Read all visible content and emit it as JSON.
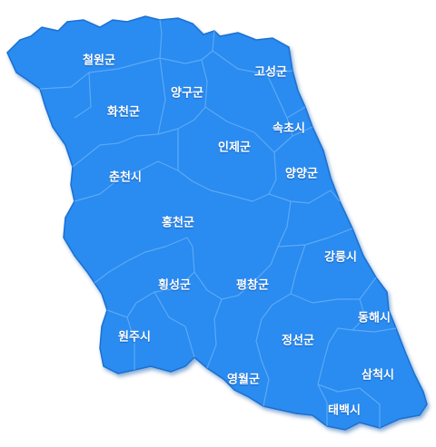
{
  "map": {
    "fill_color": "#2b8bf0",
    "edge_color": "#1a6fd0",
    "border_color": "#5aaaf8",
    "regions": [
      {
        "id": "cheorwon",
        "label": "철원군"
      },
      {
        "id": "hwacheon",
        "label": "화천군"
      },
      {
        "id": "yanggu",
        "label": "양구군"
      },
      {
        "id": "goseong",
        "label": "고성군"
      },
      {
        "id": "sokcho",
        "label": "속초시"
      },
      {
        "id": "inje",
        "label": "인제군"
      },
      {
        "id": "yangyang",
        "label": "양양군"
      },
      {
        "id": "chuncheon",
        "label": "춘천시"
      },
      {
        "id": "hongcheon",
        "label": "홍천군"
      },
      {
        "id": "gangneung",
        "label": "강릉시"
      },
      {
        "id": "hoengseong",
        "label": "횡성군"
      },
      {
        "id": "pyeongchang",
        "label": "평창군"
      },
      {
        "id": "donghae",
        "label": "동해시"
      },
      {
        "id": "wonju",
        "label": "원주시"
      },
      {
        "id": "jeongseon",
        "label": "정선군"
      },
      {
        "id": "yeongwol",
        "label": "영월군"
      },
      {
        "id": "samcheok",
        "label": "삼척시"
      },
      {
        "id": "taebaek",
        "label": "태백시"
      }
    ]
  }
}
